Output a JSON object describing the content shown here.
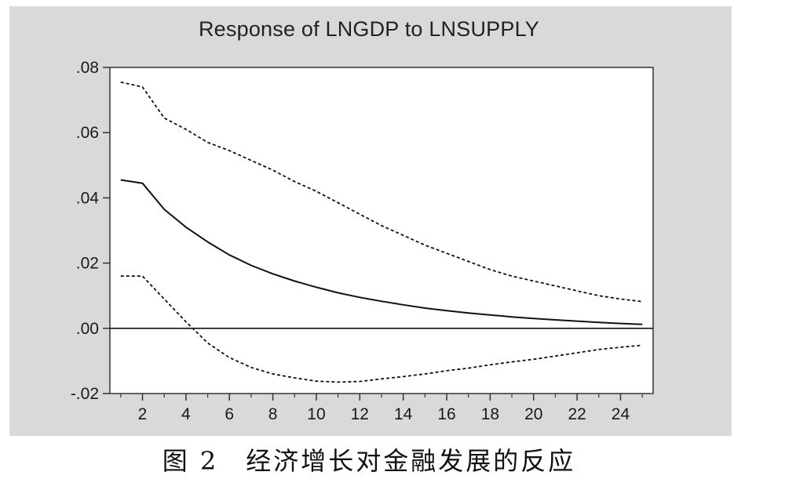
{
  "caption": "图 2　经济增长对金融发展的反应",
  "chart_data": {
    "type": "line",
    "title": "Response of LNGDP to LNSUPPLY",
    "xlabel": "",
    "ylabel": "",
    "xlim": [
      0.5,
      25.5
    ],
    "ylim": [
      -0.02,
      0.08
    ],
    "x_ticks": [
      2,
      4,
      6,
      8,
      10,
      12,
      14,
      16,
      18,
      20,
      22,
      24
    ],
    "x_tick_labels": [
      "2",
      "4",
      "6",
      "8",
      "10",
      "12",
      "14",
      "16",
      "18",
      "20",
      "22",
      "24"
    ],
    "y_ticks": [
      -0.02,
      0.0,
      0.02,
      0.04,
      0.06,
      0.08
    ],
    "y_tick_labels": [
      "-.02",
      ".00",
      ".02",
      ".04",
      ".06",
      ".08"
    ],
    "zero_line": true,
    "grid": false,
    "x": [
      1,
      2,
      3,
      4,
      5,
      6,
      7,
      8,
      9,
      10,
      11,
      12,
      13,
      14,
      15,
      16,
      17,
      18,
      19,
      20,
      21,
      22,
      23,
      24,
      25
    ],
    "series": [
      {
        "style": "solid",
        "color": "#111111",
        "values": [
          0.0455,
          0.0445,
          0.0365,
          0.031,
          0.0265,
          0.0225,
          0.0193,
          0.0167,
          0.0145,
          0.0126,
          0.0109,
          0.0095,
          0.0083,
          0.0072,
          0.0062,
          0.0054,
          0.0047,
          0.0041,
          0.0035,
          0.003,
          0.0026,
          0.0022,
          0.0018,
          0.0015,
          0.0012
        ]
      },
      {
        "style": "dashed",
        "color": "#111111",
        "values": [
          0.0755,
          0.074,
          0.0645,
          0.061,
          0.057,
          0.0545,
          0.0515,
          0.0485,
          0.045,
          0.042,
          0.0385,
          0.035,
          0.0315,
          0.0285,
          0.0255,
          0.023,
          0.0205,
          0.018,
          0.016,
          0.0145,
          0.013,
          0.0115,
          0.01,
          0.009,
          0.0082
        ]
      },
      {
        "style": "dashed",
        "color": "#111111",
        "values": [
          0.016,
          0.016,
          0.009,
          0.002,
          -0.0045,
          -0.009,
          -0.012,
          -0.014,
          -0.0152,
          -0.0162,
          -0.0165,
          -0.0163,
          -0.0155,
          -0.0148,
          -0.014,
          -0.013,
          -0.0122,
          -0.0112,
          -0.0103,
          -0.0095,
          -0.0085,
          -0.0075,
          -0.0065,
          -0.0058,
          -0.0052
        ]
      }
    ]
  }
}
